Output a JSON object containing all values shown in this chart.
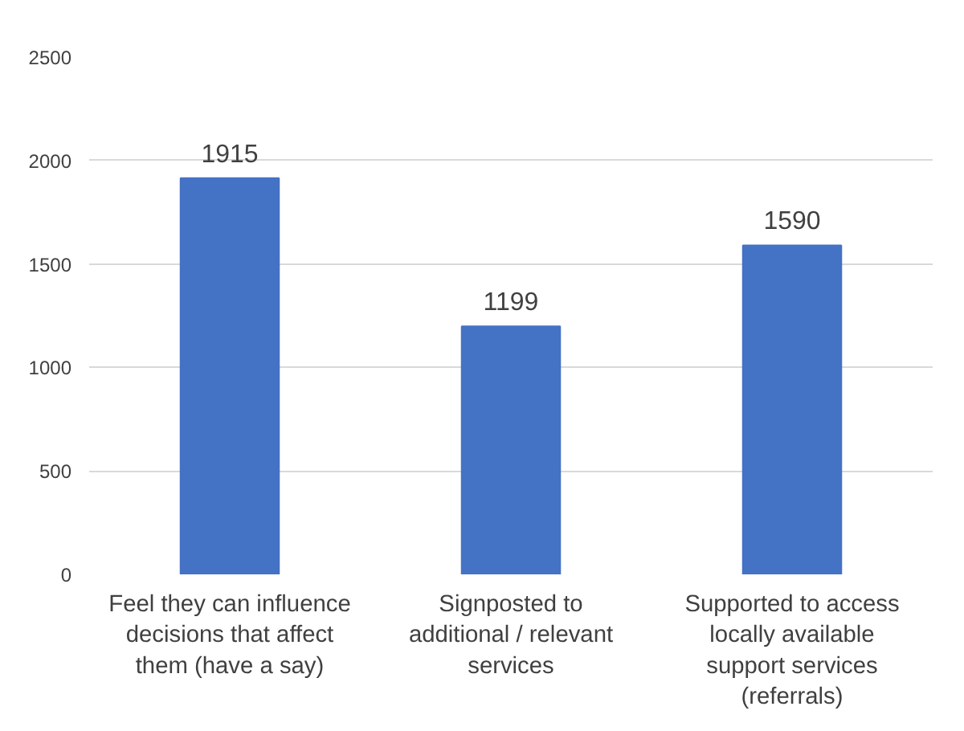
{
  "chart_data": {
    "type": "bar",
    "categories": [
      "Feel they can influence decisions that affect them (have a say)",
      "Signposted to additional / relevant services",
      "Supported to access locally available support services (referrals)"
    ],
    "values": [
      1915,
      1199,
      1590
    ],
    "color": "#4472c4",
    "ylim": [
      0,
      2500
    ],
    "yticks": [
      0,
      500,
      1000,
      1500,
      2000,
      2500
    ],
    "grid": "y",
    "data_labels": true
  }
}
